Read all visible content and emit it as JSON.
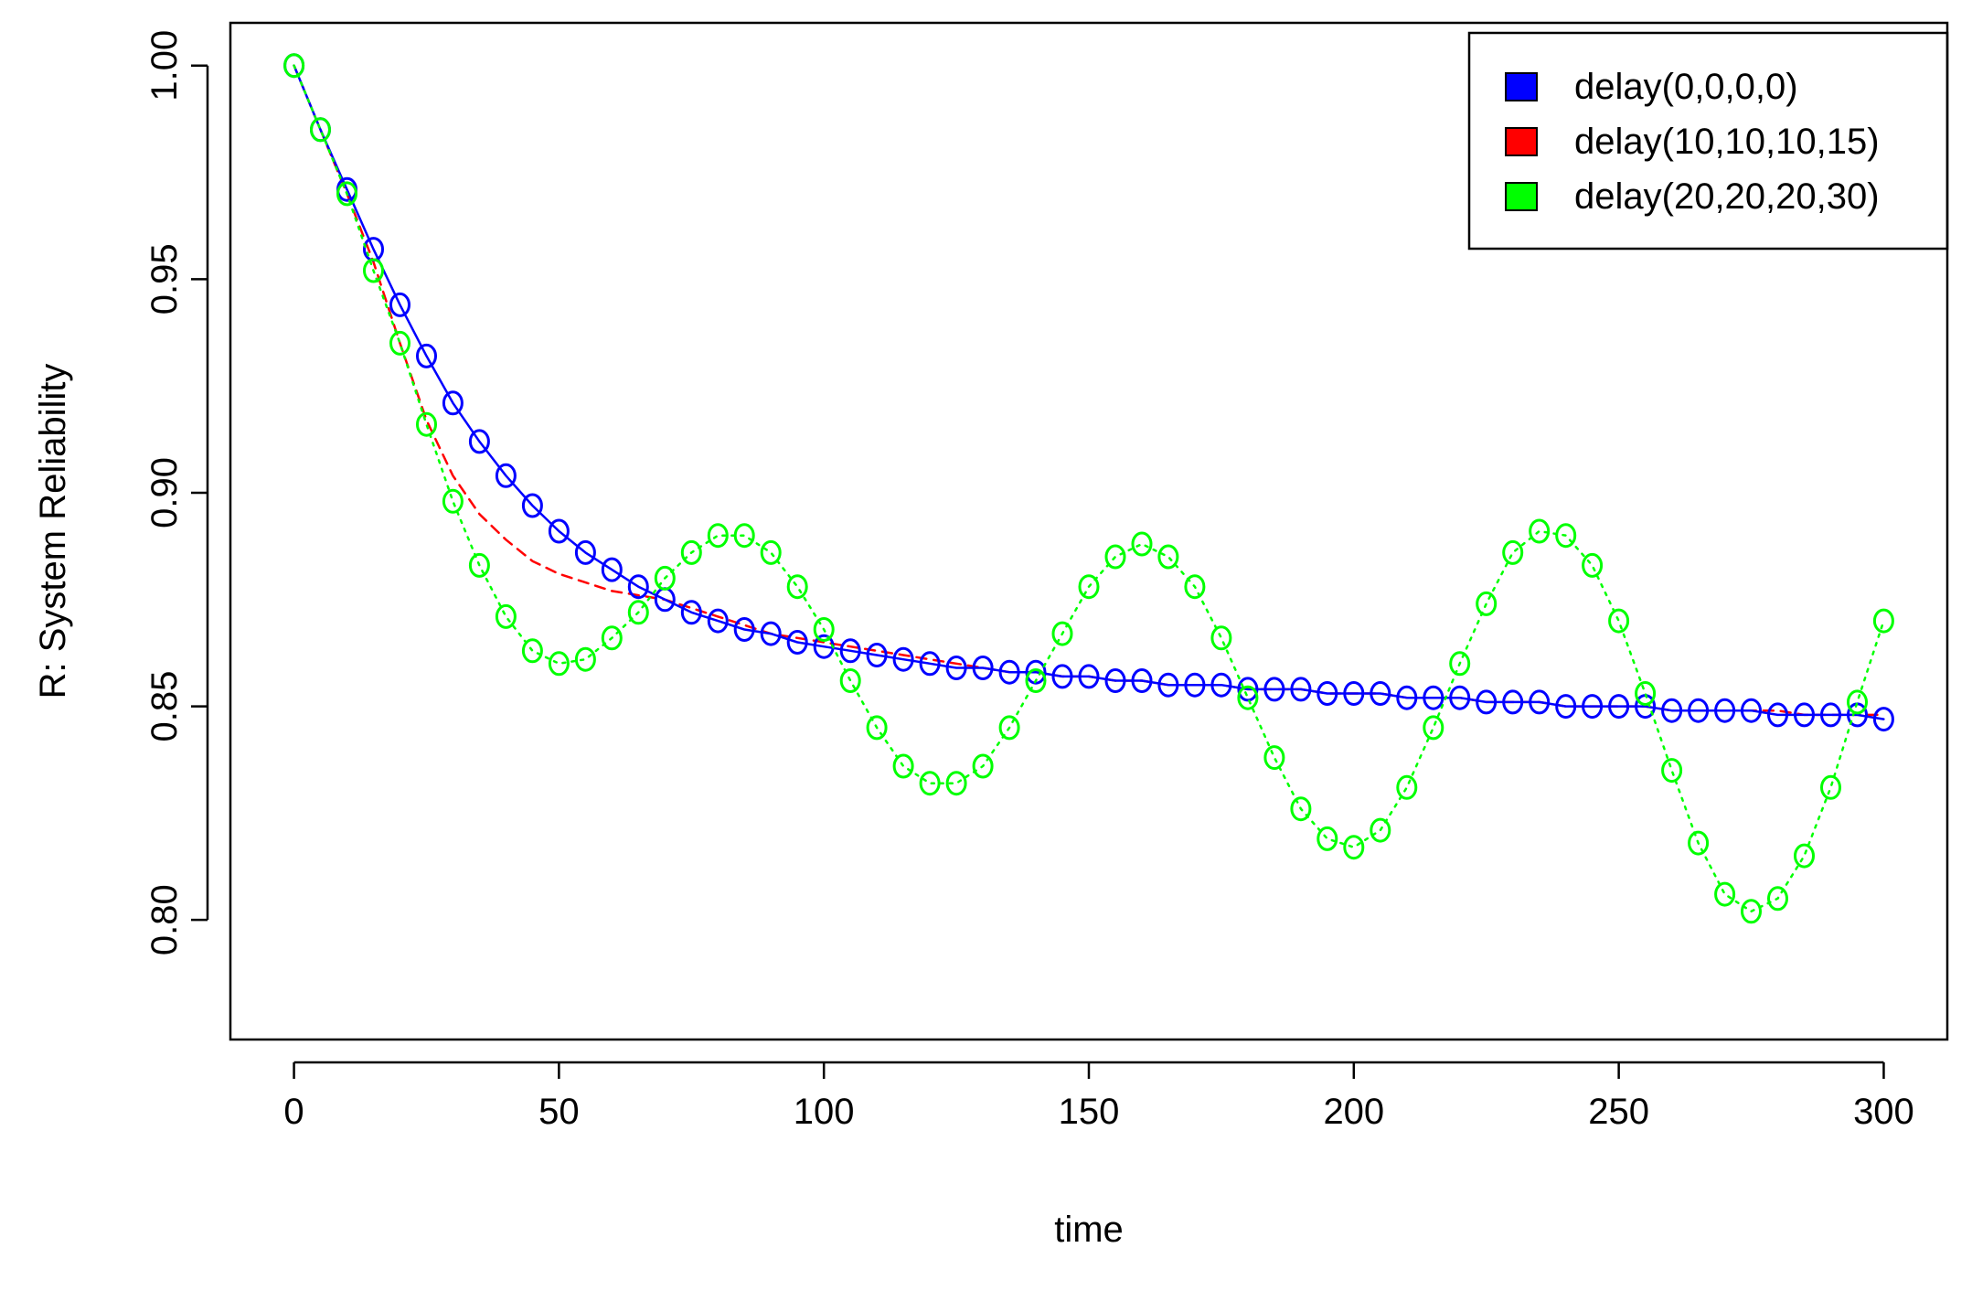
{
  "chart_data": {
    "type": "line",
    "title": "",
    "xlabel": "time",
    "ylabel": "R: System Reliability",
    "xlim": [
      -12,
      312
    ],
    "ylim": [
      0.772,
      1.01
    ],
    "x_ticks": [
      0,
      50,
      100,
      150,
      200,
      250,
      300
    ],
    "y_ticks": [
      0.8,
      0.85,
      0.9,
      0.95,
      1.0
    ],
    "x_tick_labels": [
      "0",
      "50",
      "100",
      "150",
      "200",
      "250",
      "300"
    ],
    "y_tick_labels": [
      "0.80",
      "0.85",
      "0.90",
      "0.95",
      "1.00"
    ],
    "grid": false,
    "legend_position": "top-right",
    "x": [
      0,
      5,
      10,
      15,
      20,
      25,
      30,
      35,
      40,
      45,
      50,
      55,
      60,
      65,
      70,
      75,
      80,
      85,
      90,
      95,
      100,
      105,
      110,
      115,
      120,
      125,
      130,
      135,
      140,
      145,
      150,
      155,
      160,
      165,
      170,
      175,
      180,
      185,
      190,
      195,
      200,
      205,
      210,
      215,
      220,
      225,
      230,
      235,
      240,
      245,
      250,
      255,
      260,
      265,
      270,
      275,
      280,
      285,
      290,
      295,
      300
    ],
    "series": [
      {
        "name": "delay(0,0,0,0)",
        "color": "#0000ff",
        "line_style": "solid",
        "marker": "circle",
        "values": [
          1.0,
          0.985,
          0.971,
          0.957,
          0.944,
          0.932,
          0.921,
          0.912,
          0.904,
          0.897,
          0.891,
          0.886,
          0.882,
          0.878,
          0.875,
          0.872,
          0.87,
          0.868,
          0.867,
          0.865,
          0.864,
          0.863,
          0.862,
          0.861,
          0.86,
          0.859,
          0.859,
          0.858,
          0.858,
          0.857,
          0.857,
          0.856,
          0.856,
          0.855,
          0.855,
          0.855,
          0.854,
          0.854,
          0.854,
          0.853,
          0.853,
          0.853,
          0.852,
          0.852,
          0.852,
          0.851,
          0.851,
          0.851,
          0.85,
          0.85,
          0.85,
          0.85,
          0.849,
          0.849,
          0.849,
          0.849,
          0.848,
          0.848,
          0.848,
          0.848,
          0.847
        ]
      },
      {
        "name": "delay(10,10,10,15)",
        "color": "#ff0000",
        "line_style": "dashed",
        "marker": "none",
        "values": [
          1.0,
          0.985,
          0.97,
          0.954,
          0.935,
          0.917,
          0.904,
          0.895,
          0.889,
          0.884,
          0.881,
          0.879,
          0.877,
          0.876,
          0.875,
          0.873,
          0.871,
          0.869,
          0.867,
          0.866,
          0.865,
          0.864,
          0.863,
          0.862,
          0.861,
          0.86,
          0.859,
          0.858,
          0.858,
          0.857,
          0.857,
          0.856,
          0.856,
          0.855,
          0.855,
          0.855,
          0.854,
          0.854,
          0.854,
          0.853,
          0.853,
          0.853,
          0.852,
          0.852,
          0.852,
          0.851,
          0.851,
          0.851,
          0.85,
          0.85,
          0.85,
          0.85,
          0.849,
          0.849,
          0.849,
          0.849,
          0.849,
          0.848,
          0.848,
          0.848,
          0.848
        ]
      },
      {
        "name": "delay(20,20,20,30)",
        "color": "#00ff00",
        "line_style": "dotted",
        "marker": "circle",
        "values": [
          1.0,
          0.985,
          0.97,
          0.952,
          0.935,
          0.916,
          0.898,
          0.883,
          0.871,
          0.863,
          0.86,
          0.861,
          0.866,
          0.872,
          0.88,
          0.886,
          0.89,
          0.89,
          0.886,
          0.878,
          0.868,
          0.856,
          0.845,
          0.836,
          0.832,
          0.832,
          0.836,
          0.845,
          0.856,
          0.867,
          0.878,
          0.885,
          0.888,
          0.885,
          0.878,
          0.866,
          0.852,
          0.838,
          0.826,
          0.819,
          0.817,
          0.821,
          0.831,
          0.845,
          0.86,
          0.874,
          0.886,
          0.891,
          0.89,
          0.883,
          0.87,
          0.853,
          0.835,
          0.818,
          0.806,
          0.802,
          0.805,
          0.815,
          0.831,
          0.851,
          0.87
        ]
      }
    ]
  }
}
